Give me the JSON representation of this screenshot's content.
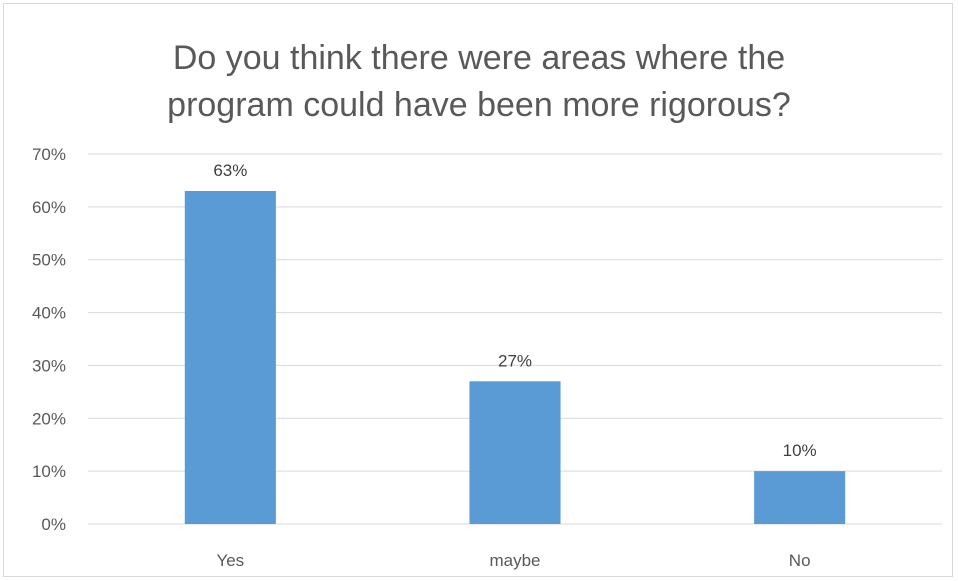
{
  "chart_data": {
    "type": "bar",
    "title_lines": [
      "Do you think there were areas where the",
      "program could have been more rigorous?"
    ],
    "categories": [
      "Yes",
      "maybe",
      "No"
    ],
    "values": [
      0.63,
      0.27,
      0.1
    ],
    "data_labels": [
      "63%",
      "27%",
      "10%"
    ],
    "ylim": [
      0,
      0.7
    ],
    "y_ticks": [
      0,
      0.1,
      0.2,
      0.3,
      0.4,
      0.5,
      0.6,
      0.7
    ],
    "y_tick_labels": [
      "0%",
      "10%",
      "20%",
      "30%",
      "40%",
      "50%",
      "60%",
      "70%"
    ],
    "xlabel": "",
    "ylabel": "",
    "grid": true,
    "legend": "none",
    "bar_color": "#5b9bd5",
    "gridline_color": "#d9d9d9",
    "text_color": "#595959"
  }
}
